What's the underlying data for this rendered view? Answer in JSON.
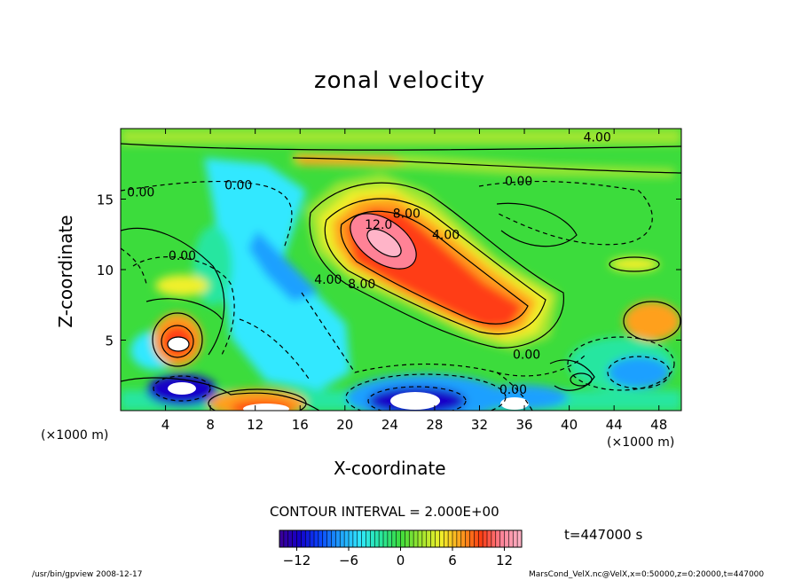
{
  "chart_data": {
    "type": "heatmap",
    "title": "zonal velocity",
    "xlabel": "X-coordinate",
    "ylabel": "Z-coordinate",
    "x_unit": "(×1000 m)",
    "y_unit": "(×1000 m)",
    "xlim": [
      0,
      50
    ],
    "ylim": [
      0,
      20
    ],
    "x_ticks": [
      4,
      8,
      12,
      16,
      20,
      24,
      28,
      32,
      36,
      40,
      44,
      48
    ],
    "y_ticks": [
      5,
      10,
      15
    ],
    "contour_interval_label": "CONTOUR INTERVAL = 2.000E+00",
    "contour_labels": [
      {
        "text": "4.00",
        "x": 42.5,
        "z": 19.4
      },
      {
        "text": "0.00",
        "x": 1.8,
        "z": 15.5
      },
      {
        "text": "0.00",
        "x": 10.5,
        "z": 16.0
      },
      {
        "text": "0.00",
        "x": 35.5,
        "z": 16.3
      },
      {
        "text": "0.00",
        "x": 5.5,
        "z": 11.0
      },
      {
        "text": "12.0",
        "x": 23.0,
        "z": 13.2
      },
      {
        "text": "8.00",
        "x": 25.5,
        "z": 14.0
      },
      {
        "text": "4.00",
        "x": 29.0,
        "z": 12.5
      },
      {
        "text": "4.00",
        "x": 18.5,
        "z": 9.3
      },
      {
        "text": "8.00",
        "x": 21.5,
        "z": 9.0
      },
      {
        "text": "0.00",
        "x": 36.2,
        "z": 4.0
      },
      {
        "text": "0.00",
        "x": 35.0,
        "z": 1.5
      }
    ],
    "time_label": "t=447000 s",
    "colorbar": {
      "min": -14,
      "max": 14,
      "tick_values": [
        -12,
        -6,
        0,
        6,
        12
      ],
      "tick_labels": [
        "−12",
        "−6",
        "0",
        "6",
        "12"
      ]
    },
    "grid": false
  },
  "footer": {
    "left": "/usr/bin/gpview  2008-12-17",
    "right": "MarsCond_VelX.nc@VelX,x=0:50000,z=0:20000,t=447000"
  },
  "colors": {
    "scale": [
      "#3c0096",
      "#1400c8",
      "#0a46ff",
      "#1fa0ff",
      "#30e8ff",
      "#28e6a0",
      "#3cdc3c",
      "#a0e630",
      "#f0f02a",
      "#ffa01e",
      "#ff3c14",
      "#ff8296",
      "#ffb4c8"
    ]
  }
}
